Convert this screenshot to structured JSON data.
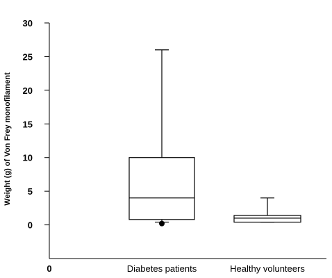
{
  "chart_data": {
    "type": "box",
    "title": "",
    "xlabel": "",
    "ylabel": "Weight (g) of Von Frey monofilament",
    "ylim": [
      -5,
      30
    ],
    "yticks": [
      0,
      5,
      10,
      15,
      20,
      25,
      30
    ],
    "x_origin_label": "0",
    "categories": [
      "Diabetes patients",
      "Healthy volunteers"
    ],
    "boxes": [
      {
        "category": "Diabetes patients",
        "whisker_low": 0.4,
        "q1": 0.8,
        "median": 4,
        "q3": 10,
        "whisker_high": 26,
        "outliers": [
          0.2
        ]
      },
      {
        "category": "Healthy volunteers",
        "whisker_low": 0.4,
        "q1": 0.4,
        "median": 1,
        "q3": 1.4,
        "whisker_high": 4,
        "outliers": []
      }
    ],
    "grid": false,
    "legend": "none"
  }
}
